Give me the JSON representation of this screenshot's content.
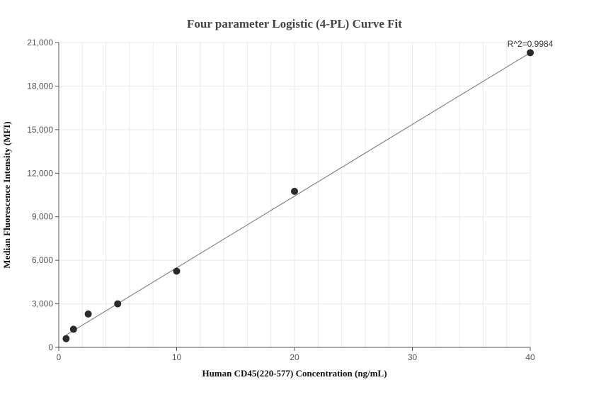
{
  "chart_data": {
    "type": "scatter",
    "title": "Four parameter Logistic (4-PL) Curve Fit",
    "xlabel": "Human CD45(220-577) Concentration (ng/mL)",
    "ylabel": "Median Fluorescence Intensity (MFI)",
    "xlim": [
      0,
      40
    ],
    "ylim": [
      0,
      21000
    ],
    "x_ticks": [
      0,
      10,
      20,
      30,
      40
    ],
    "y_ticks": [
      0,
      3000,
      6000,
      9000,
      12000,
      15000,
      18000,
      21000
    ],
    "x_tick_labels": [
      "0",
      "10",
      "20",
      "30",
      "40"
    ],
    "y_tick_labels": [
      "0",
      "3,000",
      "6,000",
      "9,000",
      "12,000",
      "15,000",
      "18,000",
      "21,000"
    ],
    "grid": true,
    "points": [
      {
        "x": 0.625,
        "y": 600
      },
      {
        "x": 1.25,
        "y": 1250
      },
      {
        "x": 2.5,
        "y": 2300
      },
      {
        "x": 5,
        "y": 3000
      },
      {
        "x": 10,
        "y": 5250
      },
      {
        "x": 20,
        "y": 10750
      },
      {
        "x": 40,
        "y": 20300
      }
    ],
    "fit_line": [
      {
        "x": 0.625,
        "y": 850
      },
      {
        "x": 40,
        "y": 20300
      }
    ],
    "annotation": "R^2=0.9984",
    "colors": {
      "points": "#2b2b2b",
      "fit_line": "#888888",
      "grid": "#e8e8ee",
      "axis": "#555555"
    }
  }
}
